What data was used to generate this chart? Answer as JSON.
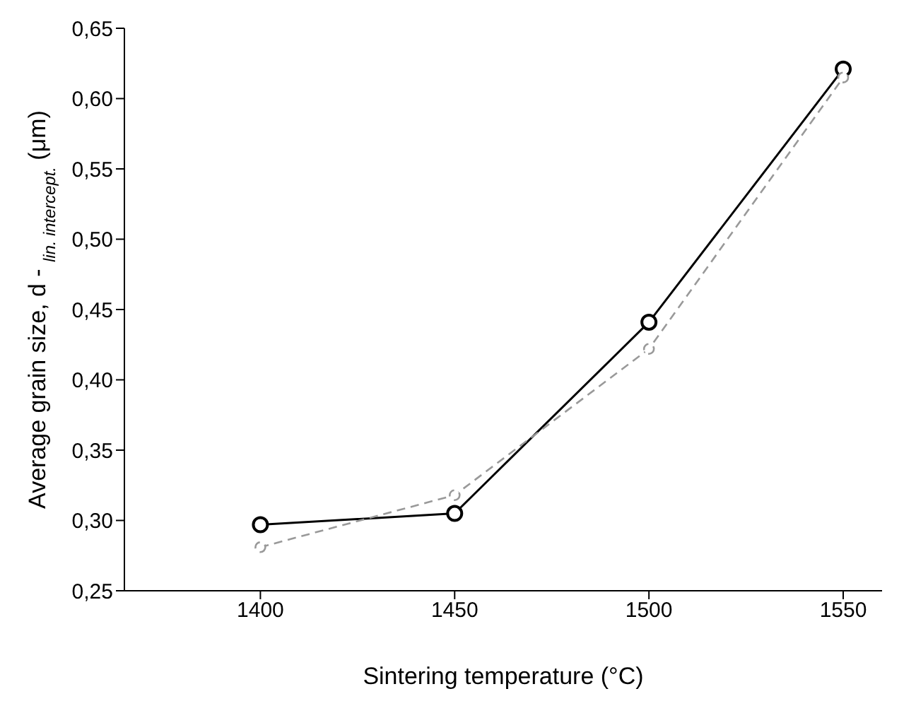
{
  "chart_data": {
    "type": "line",
    "xlabel": "Sintering temperature (°C)",
    "ylabel": "Average grain size, d - $_{lin. intercept.}$ (μm)",
    "x": [
      1400,
      1450,
      1500,
      1550
    ],
    "series": [
      {
        "color": "#000000",
        "values": [
          0.297,
          0.305,
          0.441,
          0.621
        ],
        "line_style": "solid"
      },
      {
        "color": "#999999",
        "values": [
          0.281,
          0.318,
          0.422,
          0.615
        ],
        "line_style": "dashed"
      }
    ],
    "xlim": [
      1365,
      1560
    ],
    "xticks": [
      1400,
      1450,
      1500,
      1550
    ],
    "ylim": [
      0.25,
      0.65
    ],
    "yticks": [
      {
        "value": 0.25,
        "label": "0,25"
      },
      {
        "value": 0.3,
        "label": "0,30"
      },
      {
        "value": 0.35,
        "label": "0,35"
      },
      {
        "value": 0.4,
        "label": "0,40"
      },
      {
        "value": 0.45,
        "label": "0,45"
      },
      {
        "value": 0.5,
        "label": "0,50"
      },
      {
        "value": 0.55,
        "label": "0,55"
      },
      {
        "value": 0.6,
        "label": "0,60"
      },
      {
        "value": 0.65,
        "label": "0,65"
      }
    ],
    "marker": "circle",
    "grid": false
  }
}
